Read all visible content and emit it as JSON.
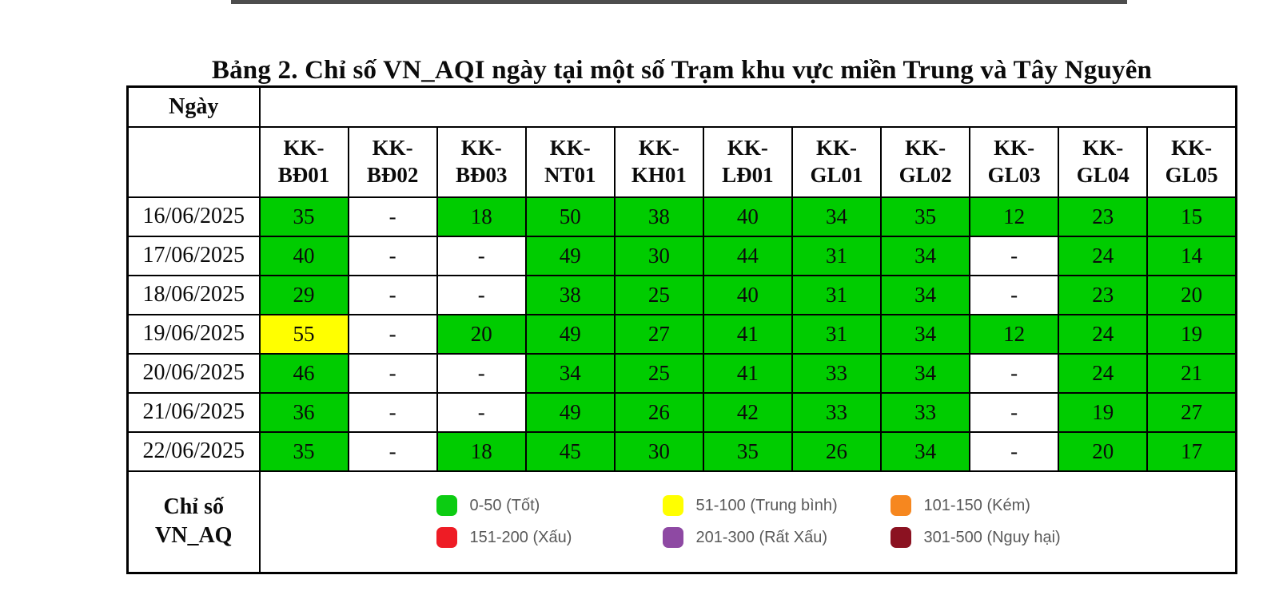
{
  "page": {
    "title": "Bảng 2. Chỉ số VN_AQI ngày tại một số Trạm khu vực miền Trung và Tây Nguyên"
  },
  "table": {
    "corner_header": "Ngày",
    "stations": [
      [
        "KK-",
        "BĐ01"
      ],
      [
        "KK-",
        "BĐ02"
      ],
      [
        "KK-",
        "BĐ03"
      ],
      [
        "KK-",
        "NT01"
      ],
      [
        "KK-",
        "KH01"
      ],
      [
        "KK-",
        "LĐ01"
      ],
      [
        "KK-",
        "GL01"
      ],
      [
        "KK-",
        "GL02"
      ],
      [
        "KK-",
        "GL03"
      ],
      [
        "KK-",
        "GL04"
      ],
      [
        "KK-",
        "GL05"
      ]
    ],
    "rows": [
      {
        "date": "16/06/2025",
        "values": [
          "35",
          "-",
          "18",
          "50",
          "38",
          "40",
          "34",
          "35",
          "12",
          "23",
          "15"
        ]
      },
      {
        "date": "17/06/2025",
        "values": [
          "40",
          "-",
          "-",
          "49",
          "30",
          "44",
          "31",
          "34",
          "-",
          "24",
          "14"
        ]
      },
      {
        "date": "18/06/2025",
        "values": [
          "29",
          "-",
          "-",
          "38",
          "25",
          "40",
          "31",
          "34",
          "-",
          "23",
          "20"
        ]
      },
      {
        "date": "19/06/2025",
        "values": [
          "55",
          "-",
          "20",
          "49",
          "27",
          "41",
          "31",
          "34",
          "12",
          "24",
          "19"
        ]
      },
      {
        "date": "20/06/2025",
        "values": [
          "46",
          "-",
          "-",
          "34",
          "25",
          "41",
          "33",
          "34",
          "-",
          "24",
          "21"
        ]
      },
      {
        "date": "21/06/2025",
        "values": [
          "36",
          "-",
          "-",
          "49",
          "26",
          "42",
          "33",
          "33",
          "-",
          "19",
          "27"
        ]
      },
      {
        "date": "22/06/2025",
        "values": [
          "35",
          "-",
          "18",
          "45",
          "30",
          "35",
          "26",
          "34",
          "-",
          "20",
          "17"
        ]
      }
    ],
    "missing_marker": "-"
  },
  "legend": {
    "row_header_lines": [
      "Chỉ số",
      "VN_AQ"
    ],
    "items": [
      {
        "label": "0-50 (Tốt)",
        "color": "#0ccc12",
        "range": [
          0,
          50
        ]
      },
      {
        "label": "151-200 (Xấu)",
        "color": "#ee1c25",
        "range": [
          151,
          200
        ]
      },
      {
        "label": "51-100 (Trung bình)",
        "color": "#ffff00",
        "range": [
          51,
          100
        ]
      },
      {
        "label": "201-300 (Rất Xấu)",
        "color": "#8e49a3",
        "range": [
          201,
          300
        ]
      },
      {
        "label": "101-150 (Kém)",
        "color": "#f6871f",
        "range": [
          101,
          150
        ]
      },
      {
        "label": "301-500 (Nguy hại)",
        "color": "#8b1221",
        "range": [
          301,
          500
        ]
      }
    ]
  },
  "colors": {
    "cell_good": "#00cc00",
    "cell_moderate": "#ffff00",
    "cell_missing": "#ffffff",
    "border": "#000000",
    "legend_text": "#595959",
    "top_rule": "#4d4d4d"
  }
}
